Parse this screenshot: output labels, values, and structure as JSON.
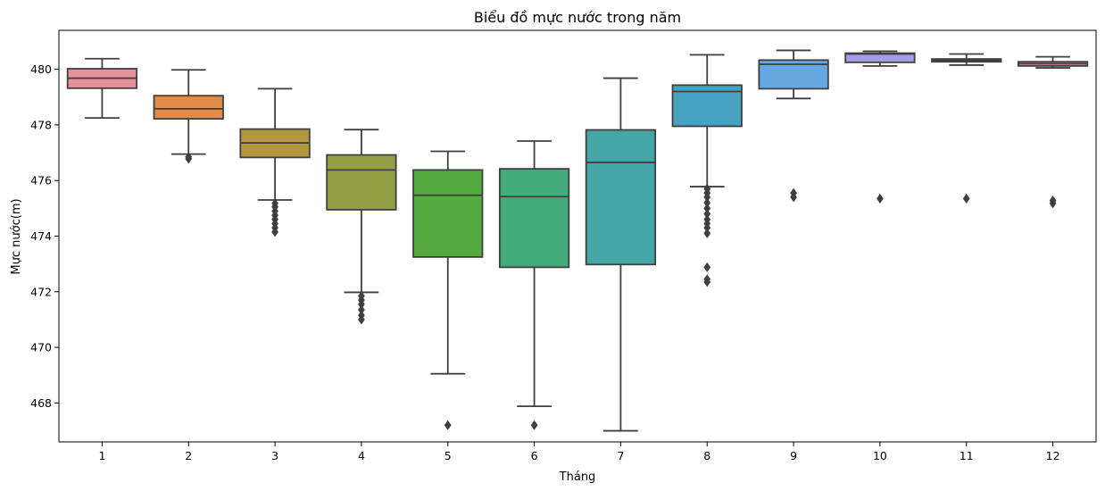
{
  "chart_data": {
    "type": "box",
    "title": "Biểu đồ mực nước trong năm",
    "xlabel": "Tháng",
    "ylabel": "Mực nước(m)",
    "ylim": [
      466.6,
      481.4
    ],
    "yticks": [
      468,
      470,
      472,
      474,
      476,
      478,
      480
    ],
    "grid": false,
    "categories": [
      "1",
      "2",
      "3",
      "4",
      "5",
      "6",
      "7",
      "8",
      "9",
      "10",
      "11",
      "12"
    ],
    "colors": [
      "#e8919a",
      "#e18c4b",
      "#b5973f",
      "#94a044",
      "#55ab3f",
      "#44ab7b",
      "#45a7a5",
      "#45a3c1",
      "#65a9e0",
      "#a59ce9",
      "#df8fe2",
      "#e892b8"
    ],
    "boxes": [
      {
        "category": "1",
        "whisker_low": 478.25,
        "q1": 479.32,
        "median": 479.68,
        "q3": 480.02,
        "whisker_high": 480.38,
        "outliers": []
      },
      {
        "category": "2",
        "whisker_low": 476.95,
        "q1": 478.22,
        "median": 478.58,
        "q3": 479.05,
        "whisker_high": 479.98,
        "outliers": [
          476.78,
          476.85
        ]
      },
      {
        "category": "3",
        "whisker_low": 475.3,
        "q1": 476.83,
        "median": 477.35,
        "q3": 477.85,
        "whisker_high": 479.3,
        "outliers": [
          475.18,
          475.05,
          474.9,
          474.75,
          474.6,
          474.45,
          474.3,
          474.15
        ]
      },
      {
        "category": "4",
        "whisker_low": 471.98,
        "q1": 474.95,
        "median": 476.38,
        "q3": 476.92,
        "whisker_high": 477.83,
        "outliers": [
          471.85,
          471.7,
          471.55,
          471.35,
          471.15,
          471.0
        ]
      },
      {
        "category": "5",
        "whisker_low": 469.05,
        "q1": 473.25,
        "median": 475.47,
        "q3": 476.38,
        "whisker_high": 477.05,
        "outliers": [
          467.2
        ]
      },
      {
        "category": "6",
        "whisker_low": 467.88,
        "q1": 472.88,
        "median": 475.42,
        "q3": 476.42,
        "whisker_high": 477.42,
        "outliers": [
          467.2
        ]
      },
      {
        "category": "7",
        "whisker_low": 467.0,
        "q1": 472.98,
        "median": 476.65,
        "q3": 477.82,
        "whisker_high": 479.68,
        "outliers": []
      },
      {
        "category": "8",
        "whisker_low": 475.78,
        "q1": 477.95,
        "median": 479.2,
        "q3": 479.43,
        "whisker_high": 480.52,
        "outliers": [
          475.7,
          475.55,
          475.4,
          475.2,
          475.0,
          474.8,
          474.6,
          474.45,
          474.3,
          474.1,
          472.88,
          472.45,
          472.35
        ]
      },
      {
        "category": "9",
        "whisker_low": 478.95,
        "q1": 479.3,
        "median": 480.18,
        "q3": 480.33,
        "whisker_high": 480.68,
        "outliers": [
          475.55,
          475.4
        ]
      },
      {
        "category": "10",
        "whisker_low": 480.12,
        "q1": 480.25,
        "median": 480.55,
        "q3": 480.58,
        "whisker_high": 480.65,
        "outliers": [
          475.35
        ]
      },
      {
        "category": "11",
        "whisker_low": 480.15,
        "q1": 480.27,
        "median": 480.32,
        "q3": 480.37,
        "whisker_high": 480.55,
        "outliers": [
          475.35
        ]
      },
      {
        "category": "12",
        "whisker_low": 480.05,
        "q1": 480.12,
        "median": 480.2,
        "q3": 480.27,
        "whisker_high": 480.45,
        "outliers": [
          475.28,
          475.18
        ]
      }
    ]
  }
}
